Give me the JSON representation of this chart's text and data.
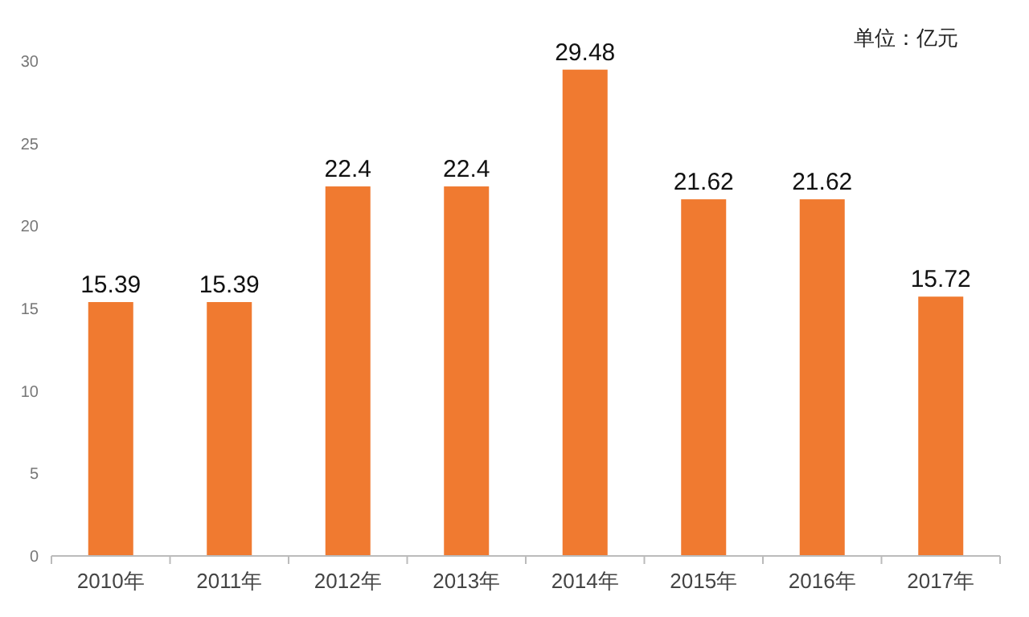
{
  "chart_data": {
    "type": "bar",
    "categories": [
      "2010年",
      "2011年",
      "2012年",
      "2013年",
      "2014年",
      "2015年",
      "2016年",
      "2017年"
    ],
    "values": [
      15.39,
      15.39,
      22.4,
      22.4,
      29.48,
      21.62,
      21.62,
      15.72
    ],
    "color": "#f07a30",
    "ylim": [
      0,
      30
    ],
    "yticks": [
      0,
      5,
      10,
      15,
      20,
      25,
      30
    ],
    "data_labels": true,
    "annotations": [
      "单位：亿元"
    ]
  }
}
